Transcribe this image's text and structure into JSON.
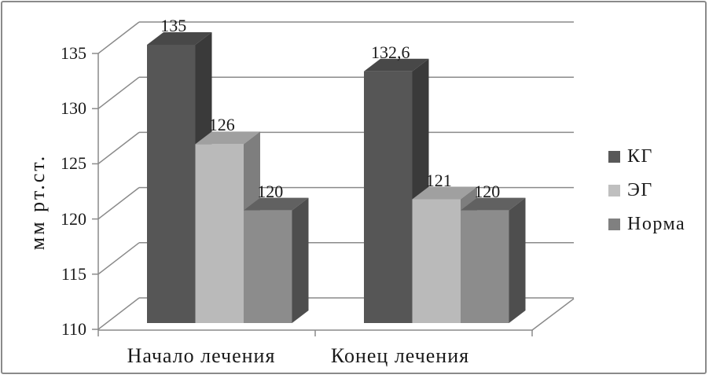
{
  "chart_data": {
    "type": "bar",
    "variant": "3d-clustered-column",
    "title": "",
    "ylabel": "мм рт.ст.",
    "xlabel": "",
    "ylim": [
      110,
      135
    ],
    "ytick_step": 5,
    "yticks": [
      110,
      115,
      120,
      125,
      130,
      135
    ],
    "categories": [
      "Начало лечения",
      "Конец лечения"
    ],
    "series": [
      {
        "name": "КГ",
        "values": [
          135,
          132.6
        ],
        "labels": [
          "135",
          "132,6"
        ],
        "legend_color": "#595959",
        "face_colors": {
          "front": "#565656",
          "top": "#484848",
          "side": "#3A3A3A"
        }
      },
      {
        "name": "ЭГ",
        "values": [
          126,
          121
        ],
        "labels": [
          "126",
          "121"
        ],
        "legend_color": "#BFBFBF",
        "face_colors": {
          "front": "#BABABA",
          "top": "#A0A0A0",
          "side": "#7E7E7E"
        }
      },
      {
        "name": "Норма",
        "values": [
          120,
          120
        ],
        "labels": [
          "120",
          "120"
        ],
        "legend_color": "#808080",
        "face_colors": {
          "front": "#8C8C8C",
          "top": "#616161",
          "side": "#4E4E4E"
        }
      }
    ],
    "legend_position": "right",
    "grid": true,
    "axis_color": "#8A8A8A",
    "text_color": "#1A1A1A",
    "background": "#FFFFFF",
    "frame_border_color": "#8A8A8A"
  }
}
